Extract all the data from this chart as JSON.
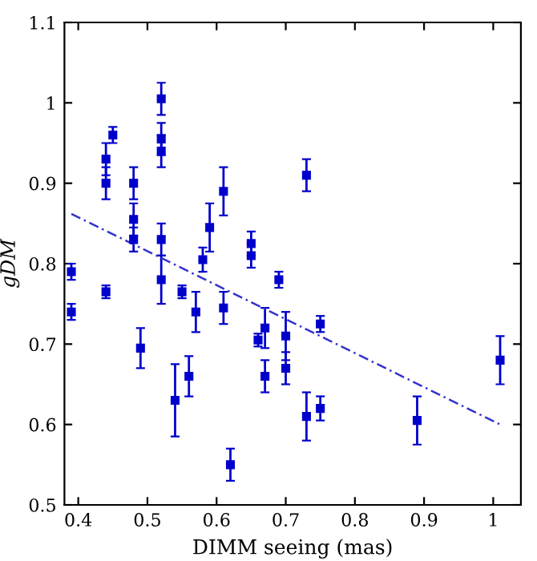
{
  "chart_data": {
    "type": "scatter",
    "xlabel": "DIMM seeing (mas)",
    "ylabel": "gDM",
    "xlim": [
      0.38,
      1.04
    ],
    "ylim": [
      0.5,
      1.1
    ],
    "xticks": [
      0.4,
      0.5,
      0.6,
      0.7,
      0.8,
      0.9,
      1
    ],
    "yticks": [
      0.5,
      0.6,
      0.7,
      0.8,
      0.9,
      1,
      1.1
    ],
    "grid": false,
    "series": [
      {
        "marker": "square",
        "color": "#0000cc",
        "x": [
          0.39,
          0.39,
          0.44,
          0.44,
          0.44,
          0.45,
          0.48,
          0.48,
          0.48,
          0.49,
          0.52,
          0.52,
          0.52,
          0.52,
          0.52,
          0.54,
          0.55,
          0.56,
          0.57,
          0.58,
          0.59,
          0.61,
          0.61,
          0.62,
          0.65,
          0.65,
          0.66,
          0.67,
          0.67,
          0.69,
          0.7,
          0.7,
          0.73,
          0.73,
          0.75,
          0.75,
          0.89,
          1.01
        ],
        "values": [
          0.79,
          0.74,
          0.765,
          0.9,
          0.93,
          0.96,
          0.9,
          0.855,
          0.83,
          0.695,
          1.005,
          0.955,
          0.94,
          0.83,
          0.78,
          0.63,
          0.765,
          0.66,
          0.74,
          0.805,
          0.845,
          0.89,
          0.745,
          0.55,
          0.825,
          0.81,
          0.705,
          0.72,
          0.66,
          0.78,
          0.71,
          0.67,
          0.91,
          0.61,
          0.725,
          0.62,
          0.605,
          0.68
        ],
        "errors": [
          0.01,
          0.01,
          0.008,
          0.02,
          0.02,
          0.01,
          0.02,
          0.02,
          0.015,
          0.025,
          0.02,
          0.02,
          0.02,
          0.02,
          0.03,
          0.045,
          0.008,
          0.025,
          0.025,
          0.015,
          0.03,
          0.03,
          0.02,
          0.02,
          0.015,
          0.015,
          0.008,
          0.025,
          0.02,
          0.01,
          0.03,
          0.02,
          0.02,
          0.03,
          0.01,
          0.015,
          0.03,
          0.03
        ]
      },
      {
        "type": "line",
        "color": "#3333cc",
        "line_style": "dashed",
        "x": [
          0.39,
          1.01
        ],
        "values": [
          0.862,
          0.6
        ]
      }
    ]
  }
}
